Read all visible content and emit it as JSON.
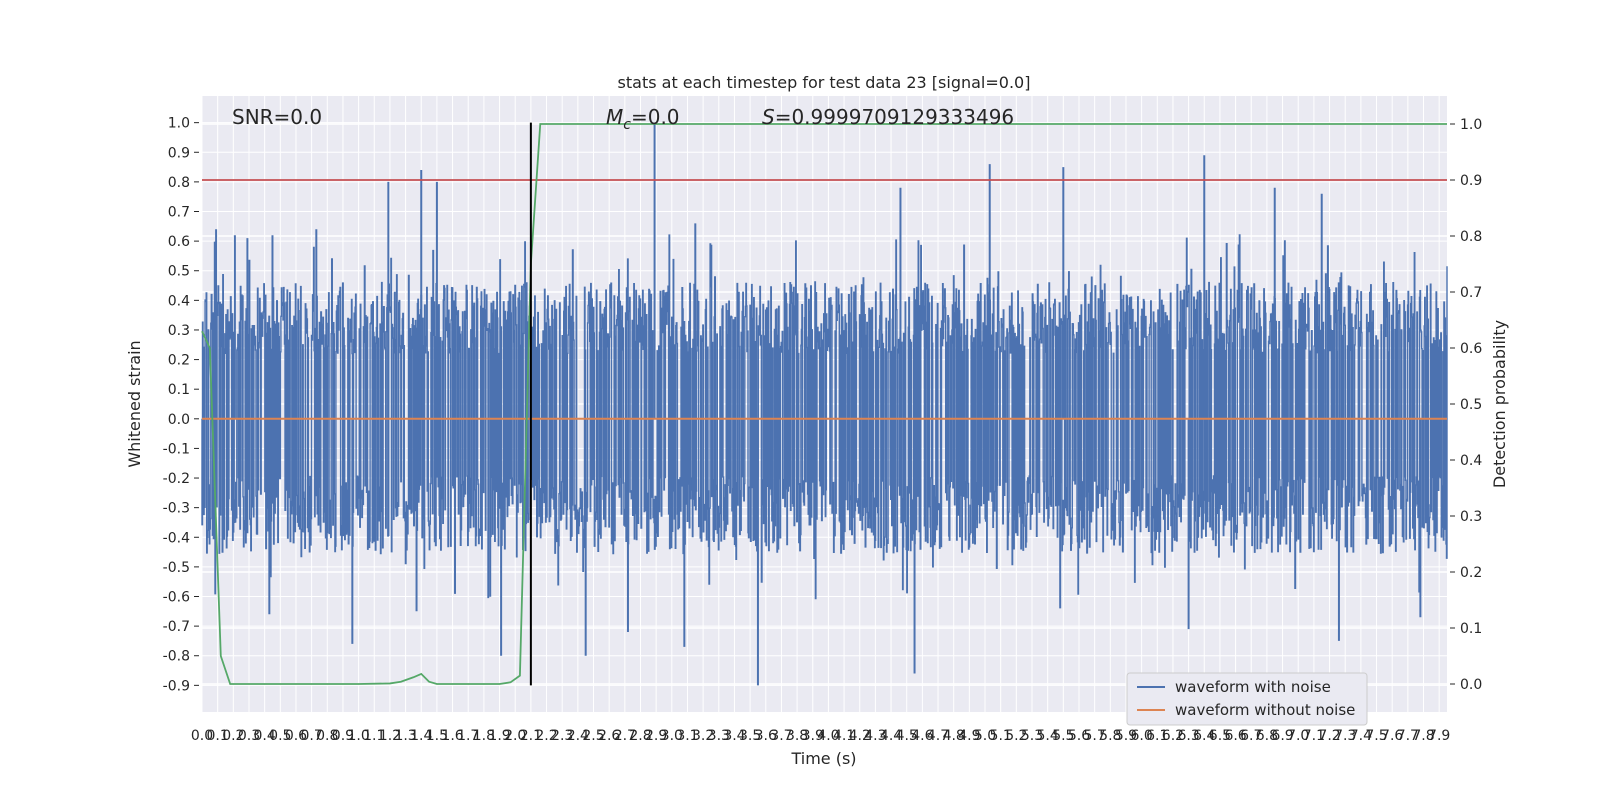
{
  "chart_data": {
    "type": "line",
    "title": "stats at each timestep for test data 23 [signal=0.0]",
    "xlabel": "Time (s)",
    "ylabel_left": "Whitened strain",
    "ylabel_right": "Detection probability",
    "xlim": [
      0.0,
      7.95
    ],
    "ylim_left": [
      -0.99,
      1.09
    ],
    "ylim_right": [
      -0.05,
      1.05
    ],
    "x_ticks": [
      "0.0",
      "0.1",
      "0.2",
      "0.3",
      "0.4",
      "0.5",
      "0.6",
      "0.7",
      "0.8",
      "0.9",
      "1.0",
      "1.1",
      "1.2",
      "1.3",
      "1.4",
      "1.5",
      "1.6",
      "1.7",
      "1.8",
      "1.9",
      "2.0",
      "2.1",
      "2.2",
      "2.3",
      "2.4",
      "2.5",
      "2.6",
      "2.7",
      "2.8",
      "2.9",
      "3.0",
      "3.1",
      "3.2",
      "3.3",
      "3.4",
      "3.5",
      "3.6",
      "3.7",
      "3.8",
      "3.9",
      "4.0",
      "4.1",
      "4.2",
      "4.3",
      "4.4",
      "4.5",
      "4.6",
      "4.7",
      "4.8",
      "4.9",
      "5.0",
      "5.1",
      "5.2",
      "5.3",
      "5.4",
      "5.5",
      "5.6",
      "5.7",
      "5.8",
      "5.9",
      "6.0",
      "6.1",
      "6.2",
      "6.3",
      "6.4",
      "6.5",
      "6.6",
      "6.7",
      "6.8",
      "6.9",
      "7.0",
      "7.1",
      "7.2",
      "7.3",
      "7.4",
      "7.5",
      "7.6",
      "7.7",
      "7.8",
      "7.9"
    ],
    "y_ticks_left": [
      "-0.9",
      "-0.8",
      "-0.7",
      "-0.6",
      "-0.5",
      "-0.4",
      "-0.3",
      "-0.2",
      "-0.1",
      "0.0",
      "0.1",
      "0.2",
      "0.3",
      "0.4",
      "0.5",
      "0.6",
      "0.7",
      "0.8",
      "0.9",
      "1.0"
    ],
    "y_ticks_right": [
      "0.0",
      "0.1",
      "0.2",
      "0.3",
      "0.4",
      "0.5",
      "0.6",
      "0.7",
      "0.8",
      "0.9",
      "1.0"
    ],
    "annotations": {
      "snr": "SNR=0.0",
      "mc_symbol": "M",
      "mc_sub": "c",
      "mc_value": "=0.0",
      "s_symbol": "S",
      "s_value": "=0.9999709129333496"
    },
    "series": [
      {
        "name": "waveform with noise",
        "color": "#4c72b0",
        "description_of_shape": "dense noise",
        "envelope_typical": [
          -0.35,
          0.4
        ],
        "peaks": [
          {
            "x": 0.09,
            "y": 0.64
          },
          {
            "x": 0.21,
            "y": 0.62
          },
          {
            "x": 0.29,
            "y": 0.61
          },
          {
            "x": 0.45,
            "y": 0.62
          },
          {
            "x": 0.73,
            "y": 0.64
          },
          {
            "x": 1.19,
            "y": 0.8
          },
          {
            "x": 1.4,
            "y": 0.84
          },
          {
            "x": 1.5,
            "y": 0.8
          },
          {
            "x": 2.89,
            "y": 1.0
          },
          {
            "x": 3.15,
            "y": 0.66
          },
          {
            "x": 4.46,
            "y": 0.78
          },
          {
            "x": 5.03,
            "y": 0.86
          },
          {
            "x": 5.5,
            "y": 0.85
          },
          {
            "x": 6.4,
            "y": 0.89
          },
          {
            "x": 6.85,
            "y": 0.78
          },
          {
            "x": 7.15,
            "y": 0.76
          }
        ],
        "troughs": [
          {
            "x": 0.43,
            "y": -0.66
          },
          {
            "x": 0.96,
            "y": -0.76
          },
          {
            "x": 1.37,
            "y": -0.65
          },
          {
            "x": 1.91,
            "y": -0.8
          },
          {
            "x": 2.45,
            "y": -0.8
          },
          {
            "x": 2.72,
            "y": -0.72
          },
          {
            "x": 3.08,
            "y": -0.77
          },
          {
            "x": 3.55,
            "y": -0.9
          },
          {
            "x": 4.55,
            "y": -0.86
          },
          {
            "x": 5.48,
            "y": -0.64
          },
          {
            "x": 6.3,
            "y": -0.71
          },
          {
            "x": 7.26,
            "y": -0.75
          },
          {
            "x": 7.78,
            "y": -0.67
          }
        ]
      },
      {
        "name": "waveform without noise",
        "color": "#dd8452",
        "x": [
          0.0,
          7.95
        ],
        "y": [
          0.0,
          0.0
        ]
      },
      {
        "name": "detection probability",
        "color": "#55a868",
        "axis": "right",
        "x": [
          0.0,
          0.05,
          0.12,
          0.18,
          0.3,
          0.5,
          0.8,
          1.0,
          1.2,
          1.27,
          1.35,
          1.4,
          1.45,
          1.5,
          1.7,
          1.9,
          1.97,
          2.03,
          2.1,
          2.16,
          2.22,
          2.5,
          3.0,
          4.0,
          5.0,
          6.0,
          7.0,
          7.95
        ],
        "y": [
          0.63,
          0.6,
          0.05,
          0.0,
          0.0,
          0.0,
          0.0,
          0.0,
          0.001,
          0.004,
          0.012,
          0.018,
          0.004,
          0.0,
          0.0,
          0.0,
          0.003,
          0.015,
          0.75,
          1.0,
          1.0,
          1.0,
          1.0,
          1.0,
          1.0,
          1.0,
          1.0,
          1.0
        ]
      }
    ],
    "reference_lines": [
      {
        "kind": "horizontal",
        "axis": "right",
        "y": 0.9,
        "color": "#c44e52"
      },
      {
        "kind": "vertical",
        "x": 2.1,
        "y_range": [
          -0.9,
          1.0
        ],
        "color": "#000000"
      }
    ],
    "legend": {
      "placement": "lower-right",
      "entries": [
        "waveform with noise",
        "waveform without noise"
      ]
    },
    "grid": true,
    "style": {
      "plot_background": "#eaeaf2",
      "grid_color": "#ffffff"
    }
  }
}
